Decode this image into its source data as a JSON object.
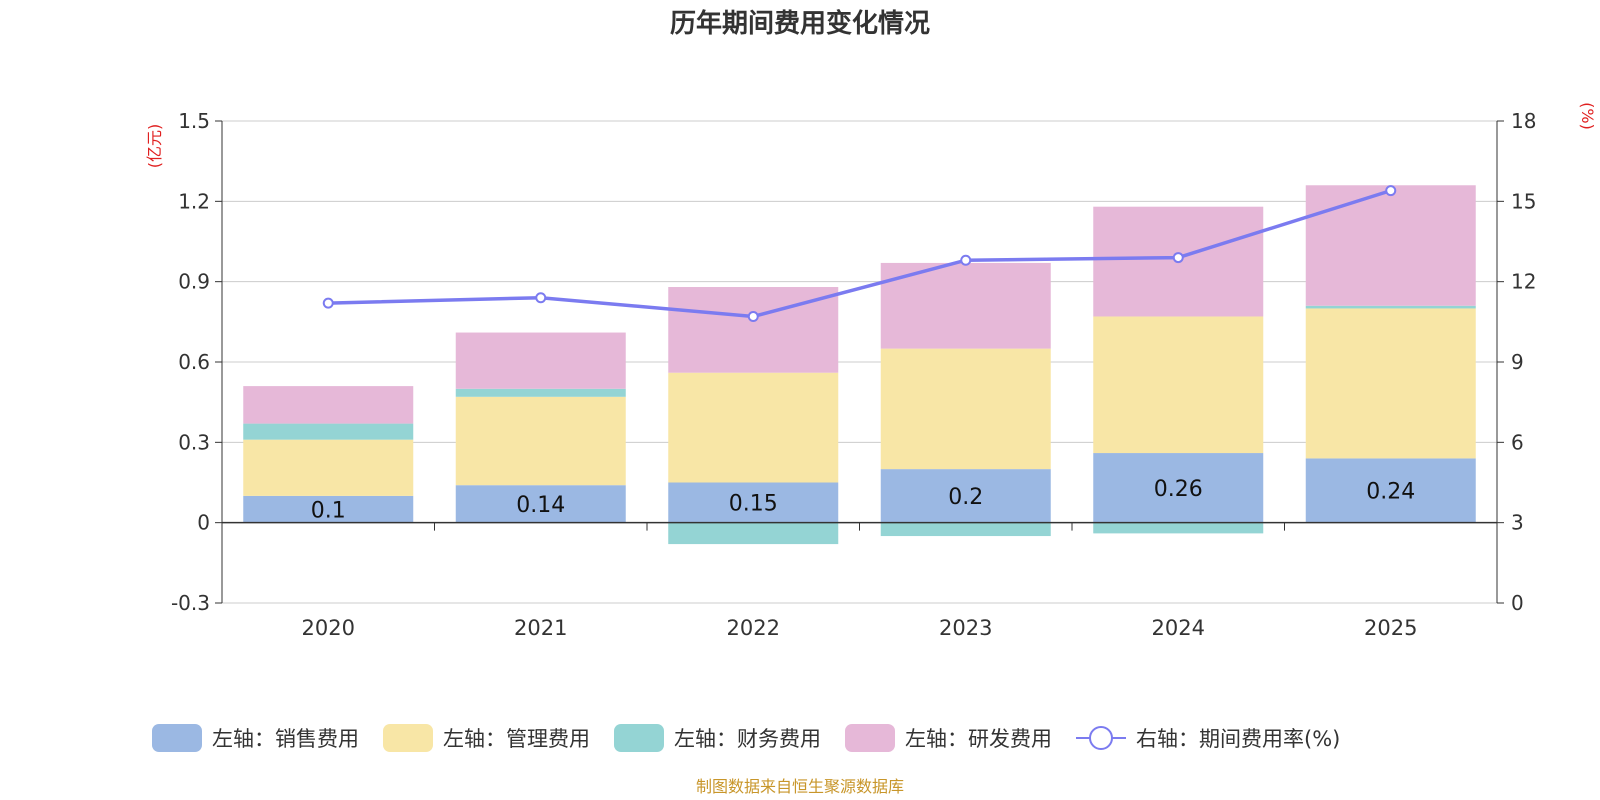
{
  "chart_data": {
    "type": "bar",
    "title": "历年期间费用变化情况",
    "left_unit": "(亿元)",
    "right_unit": "(%)",
    "categories": [
      "2020",
      "2021",
      "2022",
      "2023",
      "2024",
      "2025"
    ],
    "left_axis": {
      "min": -0.3,
      "max": 1.5,
      "ticks": [
        "-0.3",
        "0",
        "0.3",
        "0.6",
        "0.9",
        "1.2",
        "1.5"
      ],
      "tick_values": [
        -0.3,
        0,
        0.3,
        0.6,
        0.9,
        1.2,
        1.5
      ]
    },
    "right_axis": {
      "min": 0,
      "max": 18,
      "ticks": [
        "0",
        "3",
        "6",
        "9",
        "12",
        "15",
        "18"
      ],
      "tick_values": [
        0,
        3,
        6,
        9,
        12,
        15,
        18
      ]
    },
    "series": [
      {
        "name": "左轴：销售费用",
        "type": "bar",
        "color": "#9bb8e3",
        "values": [
          0.1,
          0.14,
          0.15,
          0.2,
          0.26,
          0.24
        ],
        "labels": [
          "0.1",
          "0.14",
          "0.15",
          "0.2",
          "0.26",
          "0.24"
        ]
      },
      {
        "name": "左轴：管理费用",
        "type": "bar",
        "color": "#f8e6a6",
        "values": [
          0.21,
          0.33,
          0.41,
          0.45,
          0.51,
          0.56
        ]
      },
      {
        "name": "左轴：财务费用",
        "type": "bar",
        "color": "#94d4d4",
        "values": [
          0.06,
          0.03,
          -0.08,
          -0.05,
          -0.04,
          0.01
        ]
      },
      {
        "name": "左轴：研发费用",
        "type": "bar",
        "color": "#e6b8d8",
        "values": [
          0.14,
          0.21,
          0.32,
          0.32,
          0.41,
          0.45
        ]
      },
      {
        "name": "右轴：期间费用率(%)",
        "type": "line",
        "color": "#7b7bf0",
        "values": [
          11.2,
          11.4,
          10.7,
          12.8,
          12.9,
          15.4
        ]
      }
    ],
    "source": "制图数据来自恒生聚源数据库"
  }
}
